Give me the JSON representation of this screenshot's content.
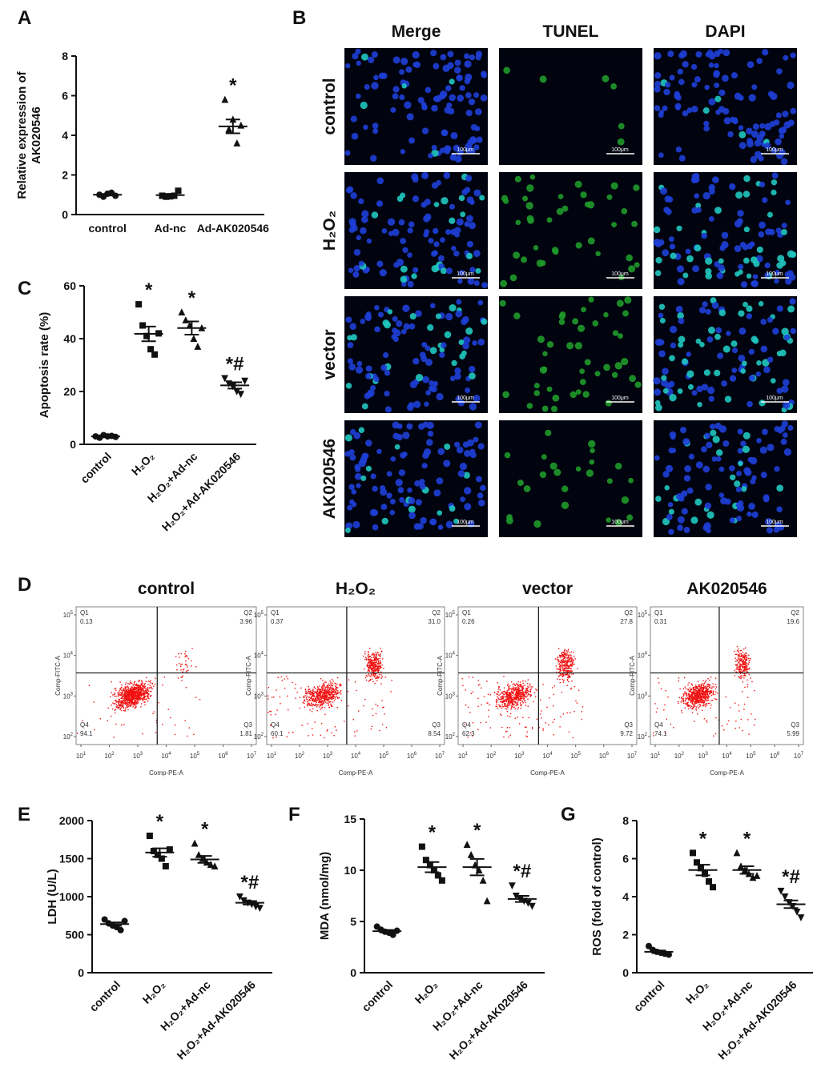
{
  "chart_data": [
    {
      "type": "dot",
      "label": "A",
      "ylabel": [
        "Relative expression of",
        "AK020546"
      ],
      "categories": [
        "control",
        "Ad-nc",
        "Ad-AK020546"
      ],
      "rotate_labels": false,
      "markers": [
        "circle",
        "square",
        "triangle"
      ],
      "points": [
        [
          1.0,
          0.9,
          1.05,
          1.1,
          0.95
        ],
        [
          0.95,
          0.9,
          0.92,
          0.95,
          1.2
        ],
        [
          5.8,
          4.3,
          4.8,
          3.6,
          4.5
        ]
      ],
      "means": [
        1.0,
        0.98,
        4.45
      ],
      "sems": [
        0.04,
        0.06,
        0.35
      ],
      "annotations": [
        null,
        null,
        "*"
      ],
      "ylim": [
        0,
        8
      ],
      "yticks": [
        0,
        2,
        4,
        6,
        8
      ],
      "color": "#111111"
    },
    {
      "type": "dot",
      "label": "C",
      "ylabel": [
        "Apoptosis rate (%)"
      ],
      "categories": [
        "control",
        "H₂O₂",
        "H₂O₂+Ad-nc",
        "H₂O₂+Ad-AK020546"
      ],
      "rotate_labels": true,
      "markers": [
        "circle",
        "square",
        "triangle",
        "triangle-down"
      ],
      "points": [
        [
          3,
          2.5,
          3.5,
          3,
          3.2,
          2.8
        ],
        [
          53,
          45,
          41,
          36,
          34,
          42
        ],
        [
          50,
          47,
          45,
          40,
          37,
          44
        ],
        [
          25,
          23,
          22,
          20,
          19,
          24
        ]
      ],
      "means": [
        3,
        41.8,
        44,
        22.3
      ],
      "sems": [
        0.2,
        2.8,
        2.5,
        1.2
      ],
      "annotations": [
        null,
        "*",
        "*",
        "*#"
      ],
      "ylim": [
        0,
        60
      ],
      "yticks": [
        0,
        20,
        40,
        60
      ],
      "color": "#111111"
    },
    {
      "type": "dot",
      "label": "E",
      "ylabel": [
        "LDH (U/L)"
      ],
      "categories": [
        "control",
        "H₂O₂",
        "H₂O₂+Ad-nc",
        "H₂O₂+Ad-AK020546"
      ],
      "rotate_labels": true,
      "markers": [
        "circle",
        "square",
        "triangle",
        "triangle-down"
      ],
      "points": [
        [
          700,
          650,
          620,
          600,
          560,
          680
        ],
        [
          1800,
          1600,
          1550,
          1500,
          1400,
          1620
        ],
        [
          1700,
          1550,
          1500,
          1450,
          1420,
          1400
        ],
        [
          1000,
          950,
          920,
          900,
          870,
          850
        ]
      ],
      "means": [
        640,
        1580,
        1490,
        920
      ],
      "sems": [
        22,
        55,
        45,
        22
      ],
      "annotations": [
        null,
        "*",
        "*",
        "*#"
      ],
      "ylim": [
        0,
        2000
      ],
      "yticks": [
        0,
        500,
        1000,
        1500,
        2000
      ],
      "color": "#111111"
    },
    {
      "type": "dot",
      "label": "F",
      "ylabel": [
        "MDA (nmol/mg)"
      ],
      "categories": [
        "control",
        "H₂O₂",
        "H₂O₂+Ad-nc",
        "H₂O₂+Ad-AK020546"
      ],
      "rotate_labels": true,
      "markers": [
        "circle",
        "square",
        "triangle",
        "triangle-down"
      ],
      "points": [
        [
          4.5,
          4.2,
          4.0,
          3.9,
          3.7,
          4.1
        ],
        [
          12.3,
          11,
          10.5,
          10,
          9.5,
          9
        ],
        [
          12.5,
          11.5,
          10.5,
          10,
          9,
          7
        ],
        [
          8.5,
          7.5,
          7.2,
          7,
          6.8,
          6.5
        ]
      ],
      "means": [
        4.05,
        10.3,
        10.3,
        7.2
      ],
      "sems": [
        0.12,
        0.5,
        0.8,
        0.3
      ],
      "annotations": [
        null,
        "*",
        "*",
        "*#"
      ],
      "ylim": [
        0,
        15
      ],
      "yticks": [
        0,
        5,
        10,
        15
      ],
      "color": "#111111"
    },
    {
      "type": "dot",
      "label": "G",
      "ylabel": [
        "ROS (fold of control)"
      ],
      "categories": [
        "control",
        "H₂O₂",
        "H₂O₂+Ad-nc",
        "H₂O₂+Ad-AK020546"
      ],
      "rotate_labels": true,
      "markers": [
        "circle",
        "square",
        "triangle",
        "triangle-down"
      ],
      "points": [
        [
          1.4,
          1.2,
          1.1,
          1.05,
          1.0,
          0.95
        ],
        [
          6.3,
          5.8,
          5.5,
          5.2,
          4.8,
          4.5
        ],
        [
          6.3,
          5.6,
          5.4,
          5.2,
          5.0,
          5.1
        ],
        [
          4.3,
          4.0,
          3.7,
          3.5,
          3.2,
          2.9
        ]
      ],
      "means": [
        1.1,
        5.4,
        5.4,
        3.6
      ],
      "sems": [
        0.07,
        0.28,
        0.2,
        0.2
      ],
      "annotations": [
        null,
        "*",
        "*",
        "*#"
      ],
      "ylim": [
        0,
        8
      ],
      "yticks": [
        0,
        2,
        4,
        6,
        8
      ],
      "color": "#111111"
    }
  ],
  "figure": {
    "microscopy": {
      "label": "B",
      "columns": [
        "Merge",
        "TUNEL",
        "DAPI"
      ],
      "rows": [
        "control",
        "H₂O₂",
        "vector",
        "AK020546"
      ],
      "scale_bar": "100μm"
    },
    "flow": {
      "label": "D",
      "x_axis": "Comp-PE-A",
      "y_axis": "Comp-FITC-A",
      "tick_base": "10",
      "xticks": [
        1,
        2,
        3,
        4,
        5,
        6,
        7
      ],
      "yticks": [
        2,
        3,
        4,
        5
      ],
      "quadrants": [
        "Q1",
        "Q2",
        "Q3",
        "Q4"
      ],
      "plots": [
        {
          "title": "control",
          "values": [
            "0.13",
            "3.96",
            "1.81",
            "94.1"
          ]
        },
        {
          "title": "H₂O₂",
          "values": [
            "0.37",
            "31.0",
            "8.54",
            "60.1"
          ]
        },
        {
          "title": "vector",
          "values": [
            "0.26",
            "27.8",
            "9.72",
            "62.3"
          ]
        },
        {
          "title": "AK020546",
          "values": [
            "0.31",
            "19.6",
            "5.99",
            "74.1"
          ]
        }
      ]
    }
  }
}
